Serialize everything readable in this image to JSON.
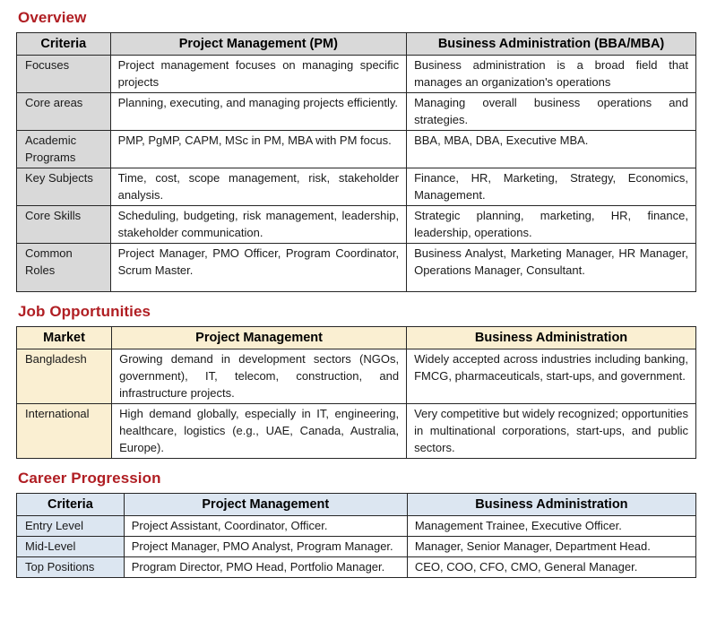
{
  "page": {
    "background": "#ffffff",
    "text_color": "#1a1a1a",
    "border_color": "#262626",
    "title_color": "#b01e23"
  },
  "sections": [
    {
      "id": "overview",
      "title": "Overview",
      "accent_bg": "#d9d9d9",
      "col_widths": [
        "13.8%",
        "43.6%",
        "42.6%"
      ],
      "headers": [
        "Criteria",
        "Project Management (PM)",
        "Business Administration (BBA/MBA)"
      ],
      "rows": [
        [
          "Focuses",
          "Project management focuses on managing specific projects",
          "Business administration is a broad field that manages an organization's operations"
        ],
        [
          "Core areas",
          "Planning, executing, and managing projects efficiently.",
          "Managing overall business operations and strategies."
        ],
        [
          "Academic Programs",
          "PMP, PgMP, CAPM, MSc in PM, MBA with PM focus.",
          "BBA, MBA, DBA, Executive MBA."
        ],
        [
          "Key Subjects",
          "Time, cost, scope management, risk, stakeholder analysis.",
          "Finance, HR, Marketing, Strategy, Economics, Management."
        ],
        [
          "Core Skills",
          "Scheduling, budgeting, risk management, leadership, stakeholder communication.",
          "Strategic planning, marketing, HR, finance, leadership, operations."
        ],
        [
          "Common Roles",
          "Project Manager, PMO Officer, Program Coordinator, Scrum Master.",
          "Business Analyst, Marketing Manager, HR Manager, Operations Manager, Consultant."
        ]
      ]
    },
    {
      "id": "job-opportunities",
      "title": "Job Opportunities",
      "accent_bg": "#faefd2",
      "col_widths": [
        "14.0%",
        "43.4%",
        "42.6%"
      ],
      "headers": [
        "Market",
        "Project Management",
        "Business Administration"
      ],
      "rows": [
        [
          "Bangladesh",
          "Growing demand in development sectors (NGOs, government), IT, telecom, construction, and infrastructure projects.",
          "Widely accepted across industries including banking, FMCG, pharmaceuticals, start-ups, and government."
        ],
        [
          "International",
          "High demand globally, especially in IT, engineering, healthcare, logistics (e.g., UAE, Canada, Australia, Europe).",
          "Very competitive but widely recognized; opportunities in multinational corporations, start-ups, and public sectors."
        ]
      ]
    },
    {
      "id": "career-progression",
      "title": "Career Progression",
      "accent_bg": "#dce6f1",
      "col_widths": [
        "15.8%",
        "41.7%",
        "42.5%"
      ],
      "headers": [
        "Criteria",
        "Project Management",
        "Business Administration"
      ],
      "rows": [
        [
          "Entry Level",
          "Project Assistant, Coordinator, Officer.",
          "Management Trainee, Executive Officer."
        ],
        [
          "Mid-Level",
          "Project Manager, PMO Analyst, Program Manager.",
          "Manager, Senior Manager, Department Head."
        ],
        [
          "Top Positions",
          "Program Director, PMO Head, Portfolio Manager.",
          "CEO, COO, CFO, CMO, General Manager."
        ]
      ]
    }
  ]
}
